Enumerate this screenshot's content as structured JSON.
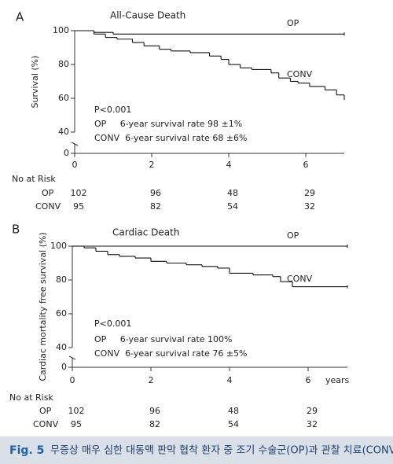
{
  "chart_data": [
    {
      "type": "line",
      "step": true,
      "panel": "A",
      "title": "All-Cause Death",
      "ylabel": "Survival (%)",
      "xlim": [
        0,
        7
      ],
      "xticks": [
        0,
        2,
        4,
        6
      ],
      "ylim": [
        0,
        100
      ],
      "yticks": [
        0,
        40,
        60,
        80,
        100
      ],
      "y_break": [
        0,
        40
      ],
      "series": [
        {
          "name": "OP",
          "color": "#111111",
          "x": [
            0,
            0.5,
            1.0,
            7
          ],
          "values": [
            100,
            99,
            98,
            98
          ]
        },
        {
          "name": "CONV",
          "color": "#111111",
          "x": [
            0,
            0.5,
            0.8,
            1.1,
            1.5,
            1.8,
            2.2,
            2.5,
            3.0,
            3.5,
            3.8,
            4.0,
            4.3,
            4.6,
            5.1,
            5.3,
            5.6,
            5.8,
            6.1,
            6.5,
            6.8,
            7
          ],
          "values": [
            100,
            98,
            96,
            95,
            93,
            91,
            89,
            88,
            87,
            85,
            83,
            80,
            78,
            77,
            75,
            72,
            70,
            69,
            67,
            65,
            62,
            60
          ]
        }
      ],
      "annotations": [
        "P<0.001",
        "OP     6-year survival rate 98 ±1%",
        "CONV  6-year survival rate 68 ±6%"
      ],
      "risk_table": {
        "title": "No at Risk",
        "rows": [
          {
            "name": "OP",
            "values": [
              102,
              96,
              48,
              29
            ]
          },
          {
            "name": "CONV",
            "values": [
              95,
              82,
              54,
              32
            ]
          }
        ]
      }
    },
    {
      "type": "line",
      "step": true,
      "panel": "B",
      "title": "Cardiac Death",
      "ylabel": "Cardiac mortality free survival (%)",
      "xlabel": "years",
      "xlim": [
        0,
        7
      ],
      "xticks": [
        0,
        2,
        4,
        6
      ],
      "ylim": [
        0,
        100
      ],
      "yticks": [
        0,
        40,
        60,
        80,
        100
      ],
      "y_break": [
        0,
        40
      ],
      "series": [
        {
          "name": "OP",
          "color": "#111111",
          "x": [
            0,
            7
          ],
          "values": [
            100,
            100
          ]
        },
        {
          "name": "CONV",
          "color": "#111111",
          "x": [
            0,
            0.3,
            0.6,
            0.9,
            1.2,
            1.6,
            2.0,
            2.4,
            2.9,
            3.3,
            3.7,
            4.0,
            4.6,
            5.1,
            5.3,
            5.6,
            7
          ],
          "values": [
            100,
            99,
            97,
            95,
            94,
            93,
            91,
            90,
            89,
            88,
            87,
            84,
            83,
            82,
            79,
            76,
            76
          ]
        }
      ],
      "annotations": [
        "P<0.001",
        "OP     6-year survival rate 100%",
        "CONV  6-year survival rate 76 ±5%"
      ],
      "risk_table": {
        "title": "No at Risk",
        "rows": [
          {
            "name": "OP",
            "values": [
              102,
              96,
              48,
              29
            ]
          },
          {
            "name": "CONV",
            "values": [
              95,
              82,
              54,
              32
            ]
          }
        ]
      }
    }
  ],
  "caption": {
    "label": "Fig. 5",
    "text": "무증상 매우 심한 대동맥 판막 협착 환자 중 조기 수술군(OP)과 관찰 치료(CONV)의 예후"
  }
}
